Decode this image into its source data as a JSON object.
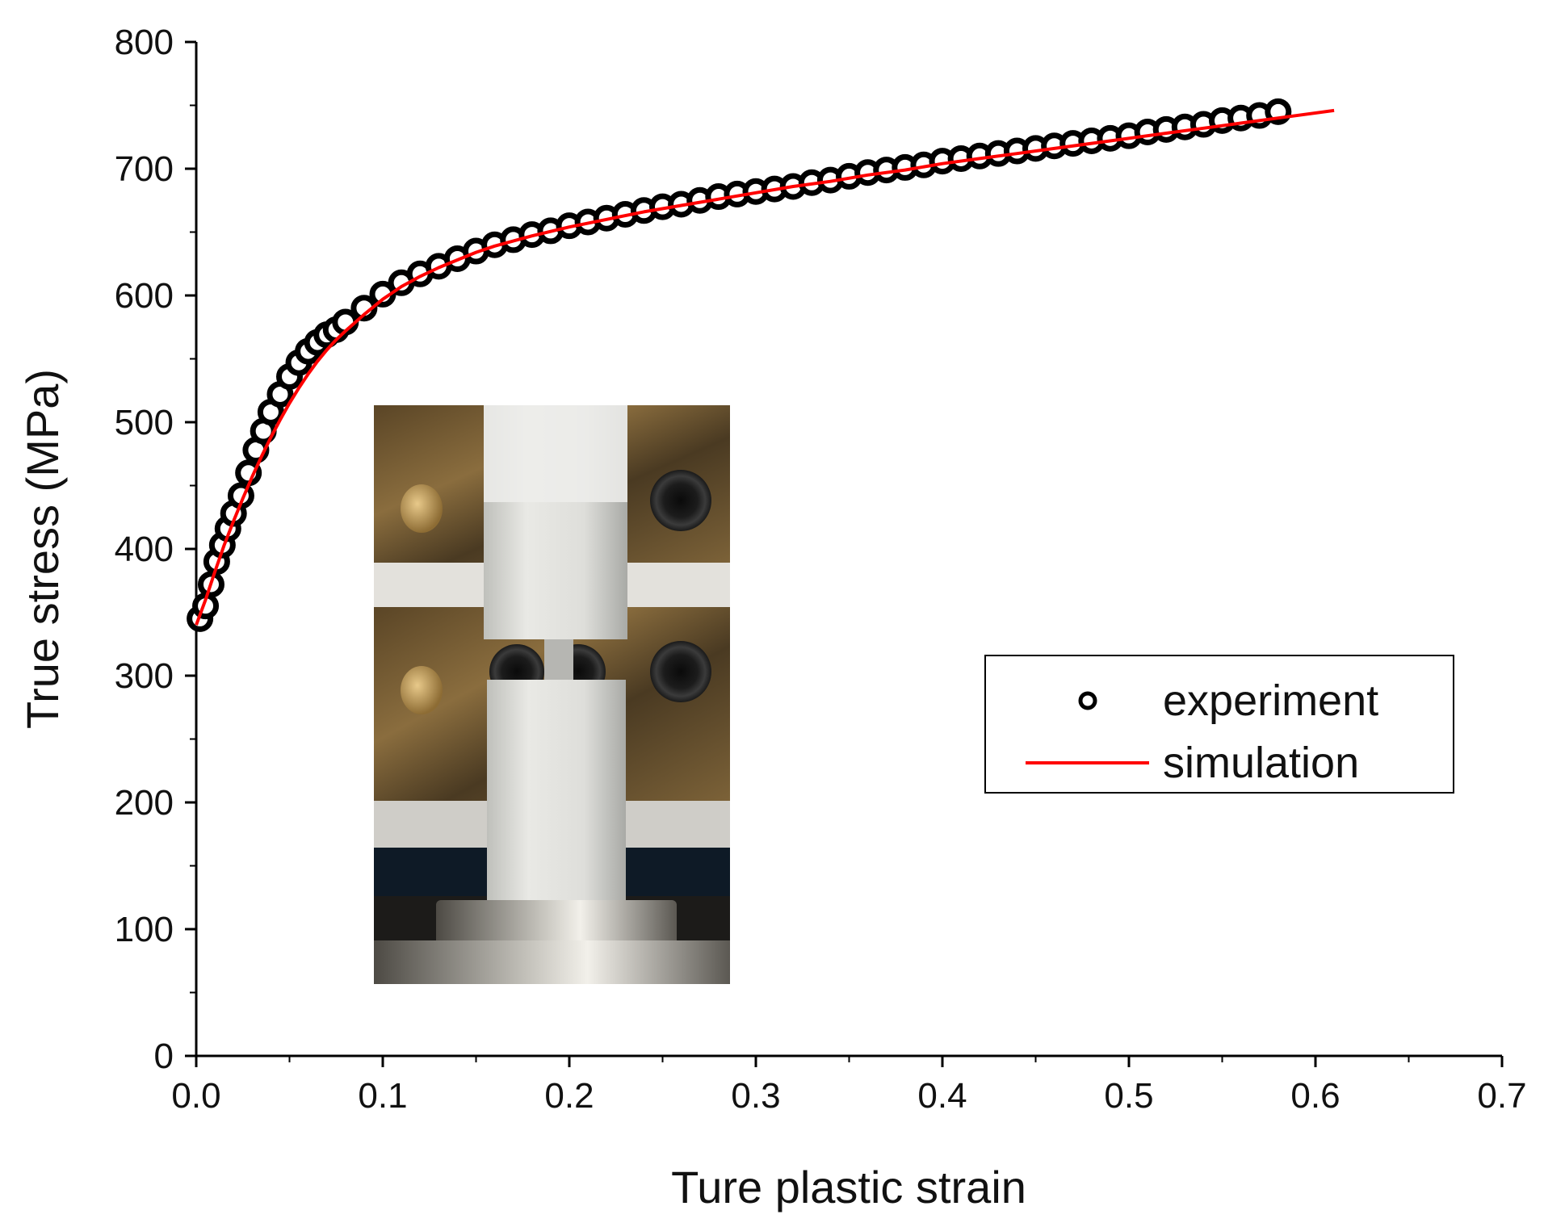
{
  "chart_data": {
    "type": "scatter",
    "title": "",
    "xlabel": "Ture plastic strain",
    "ylabel": "True stress (MPa)",
    "xlim": [
      0.0,
      0.7
    ],
    "ylim": [
      0,
      800
    ],
    "x_ticks": [
      "0.0",
      "0.1",
      "0.2",
      "0.3",
      "0.4",
      "0.5",
      "0.6",
      "0.7"
    ],
    "y_ticks": [
      "0",
      "100",
      "200",
      "300",
      "400",
      "500",
      "600",
      "700",
      "800"
    ],
    "grid": false,
    "legend_position": "center-right",
    "series": [
      {
        "name": "experiment",
        "style": "open-circle-markers",
        "color": "#000000",
        "x": [
          0.002,
          0.005,
          0.008,
          0.011,
          0.014,
          0.017,
          0.02,
          0.024,
          0.028,
          0.032,
          0.036,
          0.04,
          0.045,
          0.05,
          0.055,
          0.06,
          0.065,
          0.07,
          0.075,
          0.08,
          0.09,
          0.1,
          0.11,
          0.12,
          0.13,
          0.14,
          0.15,
          0.16,
          0.17,
          0.18,
          0.19,
          0.2,
          0.21,
          0.22,
          0.23,
          0.24,
          0.25,
          0.26,
          0.27,
          0.28,
          0.29,
          0.3,
          0.31,
          0.32,
          0.33,
          0.34,
          0.35,
          0.36,
          0.37,
          0.38,
          0.39,
          0.4,
          0.41,
          0.42,
          0.43,
          0.44,
          0.45,
          0.46,
          0.47,
          0.48,
          0.49,
          0.5,
          0.51,
          0.52,
          0.53,
          0.54,
          0.55,
          0.56,
          0.57,
          0.58
        ],
        "y": [
          345,
          355,
          372,
          390,
          403,
          416,
          428,
          442,
          460,
          478,
          493,
          508,
          522,
          536,
          547,
          556,
          563,
          569,
          573,
          579,
          590,
          601,
          610,
          617,
          623,
          629,
          635,
          640,
          644,
          648,
          651,
          655,
          658,
          661,
          664,
          667,
          670,
          672,
          675,
          678,
          680,
          682,
          684,
          686,
          689,
          691,
          694,
          697,
          699,
          701,
          703,
          706,
          708,
          710,
          712,
          714,
          716,
          718,
          720,
          722,
          724,
          726,
          729,
          731,
          733,
          735,
          738,
          740,
          742,
          745
        ]
      },
      {
        "name": "simulation",
        "style": "line",
        "color": "#ff0000",
        "x": [
          0.0,
          0.005,
          0.01,
          0.015,
          0.02,
          0.025,
          0.03,
          0.035,
          0.04,
          0.045,
          0.05,
          0.055,
          0.06,
          0.065,
          0.07,
          0.075,
          0.08,
          0.09,
          0.1,
          0.11,
          0.12,
          0.13,
          0.14,
          0.15,
          0.16,
          0.18,
          0.2,
          0.22,
          0.24,
          0.26,
          0.28,
          0.3,
          0.32,
          0.34,
          0.36,
          0.38,
          0.4,
          0.42,
          0.44,
          0.46,
          0.48,
          0.5,
          0.52,
          0.54,
          0.56,
          0.58,
          0.61
        ],
        "y": [
          340,
          360,
          382,
          403,
          422,
          440,
          457,
          473,
          488,
          502,
          515,
          527,
          538,
          548,
          557,
          565,
          572,
          585,
          597,
          607,
          615,
          622,
          628,
          634,
          639,
          647,
          654,
          660,
          666,
          671,
          676,
          681,
          686,
          690,
          695,
          699,
          704,
          708,
          712,
          716,
          720,
          724,
          728,
          732,
          736,
          740,
          746
        ]
      }
    ],
    "inset_photo": "compression-test-photo"
  }
}
